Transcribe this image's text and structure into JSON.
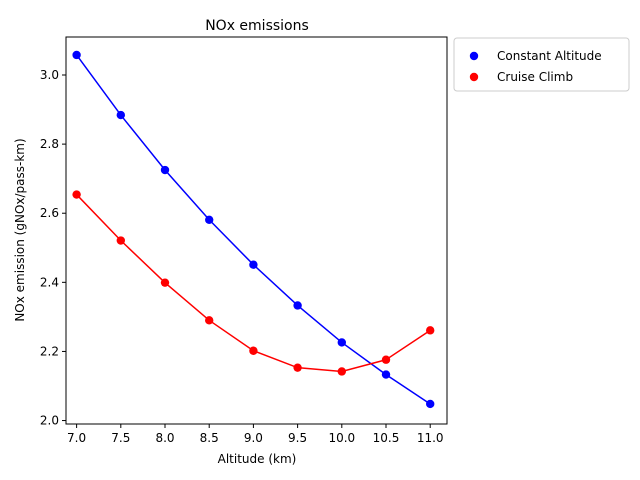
{
  "chart_data": {
    "type": "line",
    "title": "NOx emissions",
    "xlabel": "Altitude (km)",
    "ylabel": "NOx emission (gNOx/pass-km)",
    "xlim": [
      6.88,
      11.19
    ],
    "ylim": [
      1.99,
      3.11
    ],
    "xticks": [
      "7.0",
      "7.5",
      "8.0",
      "8.5",
      "9.0",
      "9.5",
      "10.0",
      "10.5",
      "11.0"
    ],
    "yticks": [
      "2.0",
      "2.2",
      "2.4",
      "2.6",
      "2.8",
      "3.0"
    ],
    "grid": false,
    "legend_position": "outside-top-right",
    "x": [
      7.0,
      7.5,
      8.0,
      8.5,
      9.0,
      9.5,
      10.0,
      10.5,
      11.0
    ],
    "series": [
      {
        "name": "Constant Altitude",
        "color": "#0000ff",
        "values": [
          3.058,
          2.884,
          2.725,
          2.581,
          2.451,
          2.333,
          2.226,
          2.133,
          2.048
        ]
      },
      {
        "name": "Cruise Climb",
        "color": "#ff0000",
        "values": [
          2.654,
          2.521,
          2.399,
          2.29,
          2.202,
          2.153,
          2.142,
          2.176,
          2.261
        ]
      }
    ]
  }
}
